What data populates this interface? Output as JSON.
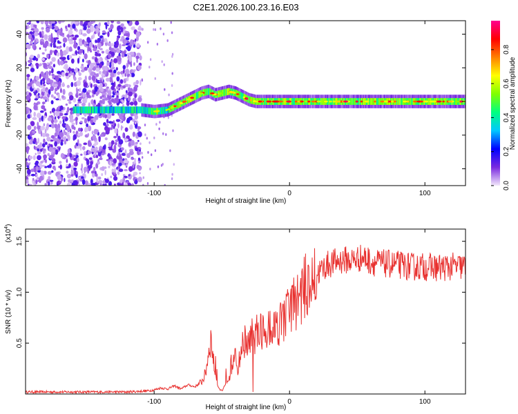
{
  "title": "C2E1.2026.100.23.16.E03",
  "chart_data": [
    {
      "type": "heatmap",
      "title": "C2E1.2026.100.23.16.E03",
      "xlabel": "Height of straight line (km)",
      "ylabel": "Frequency (Hz)",
      "xlim": [
        -195,
        130
      ],
      "ylim": [
        -50,
        48
      ],
      "xticks": [
        -100,
        0,
        100
      ],
      "xtick_labels": [
        "-100",
        "0",
        "100"
      ],
      "yticks": [
        -40,
        -20,
        0,
        20,
        40
      ],
      "ytick_labels": [
        "-40",
        "-20",
        "0",
        "20",
        "40"
      ],
      "noise_region_x": [
        -195,
        -110
      ],
      "ridge": {
        "x": [
          -160,
          -130,
          -110,
          -100,
          -90,
          -85,
          -80,
          -75,
          -70,
          -65,
          -60,
          -55,
          -50,
          -45,
          -40,
          -35,
          -30,
          -25,
          -20,
          -10,
          0,
          20,
          60,
          100,
          130
        ],
        "frequency": [
          -5,
          -5,
          -5,
          -6,
          -5,
          -3,
          -1,
          1,
          3,
          5,
          6,
          4,
          5,
          6,
          5,
          3,
          1,
          0,
          0,
          0,
          0,
          0,
          0,
          0,
          0
        ]
      },
      "colorbar": {
        "label": "Normalized spectral amplitude",
        "range": [
          0.0,
          0.97
        ],
        "ticks": [
          0.0,
          0.2,
          0.4,
          0.6,
          0.8
        ],
        "tick_labels": [
          "0.0",
          "0.2",
          "0.4",
          "0.6",
          "0.8"
        ],
        "colors": [
          "#f2e8fa",
          "#7a2be0",
          "#0000ff",
          "#00c8ff",
          "#00ff80",
          "#80ff00",
          "#ffff00",
          "#ff8000",
          "#ff0000",
          "#ff0090"
        ]
      }
    },
    {
      "type": "line",
      "xlabel": "Height of straight line (km)",
      "ylabel": "SNR (10 * v/v)",
      "scale_label": "(x10",
      "scale_exponent": "4",
      "scale_suffix": ")",
      "xlim": [
        -195,
        130
      ],
      "ylim": [
        0,
        1.62
      ],
      "xticks": [
        -100,
        0,
        100
      ],
      "xtick_labels": [
        "-100",
        "0",
        "100"
      ],
      "yticks": [
        0.5,
        1.0,
        1.5
      ],
      "ytick_labels": [
        "0.5",
        "1.0",
        "1.5"
      ],
      "series": [
        {
          "name": "SNR",
          "color": "#e8302e",
          "x": [
            -195,
            -160,
            -120,
            -105,
            -100,
            -95,
            -90,
            -85,
            -80,
            -75,
            -70,
            -65,
            -62,
            -60,
            -58,
            -56,
            -54,
            -52,
            -50,
            -48,
            -46,
            -44,
            -42,
            -40,
            -38,
            -36,
            -34,
            -32,
            -30,
            -28,
            -26,
            -24,
            -22,
            -20,
            -18,
            -16,
            -14,
            -12,
            -10,
            -8,
            -6,
            -4,
            -2,
            0,
            2,
            4,
            6,
            8,
            10,
            12,
            14,
            16,
            18,
            20,
            22,
            24,
            26,
            28,
            30,
            35,
            40,
            45,
            50,
            55,
            60,
            70,
            80,
            90,
            100,
            110,
            120,
            130
          ],
          "values": [
            0.02,
            0.02,
            0.02,
            0.03,
            0.04,
            0.06,
            0.05,
            0.08,
            0.05,
            0.09,
            0.07,
            0.12,
            0.2,
            0.4,
            0.55,
            0.3,
            0.12,
            0.05,
            0.03,
            0.08,
            0.15,
            0.2,
            0.3,
            0.35,
            0.25,
            0.42,
            0.5,
            0.55,
            0.45,
            0.6,
            0.5,
            0.62,
            0.55,
            0.66,
            0.6,
            0.65,
            0.7,
            0.62,
            0.72,
            0.68,
            0.75,
            0.72,
            0.8,
            0.85,
            0.88,
            0.9,
            0.92,
            0.98,
            1.02,
            1.05,
            1.1,
            1.08,
            1.15,
            1.18,
            1.2,
            1.22,
            1.25,
            1.27,
            1.28,
            1.3,
            1.32,
            1.31,
            1.33,
            1.34,
            1.3,
            1.28,
            1.27,
            1.25,
            1.25,
            1.24,
            1.25,
            1.25
          ]
        }
      ]
    }
  ]
}
